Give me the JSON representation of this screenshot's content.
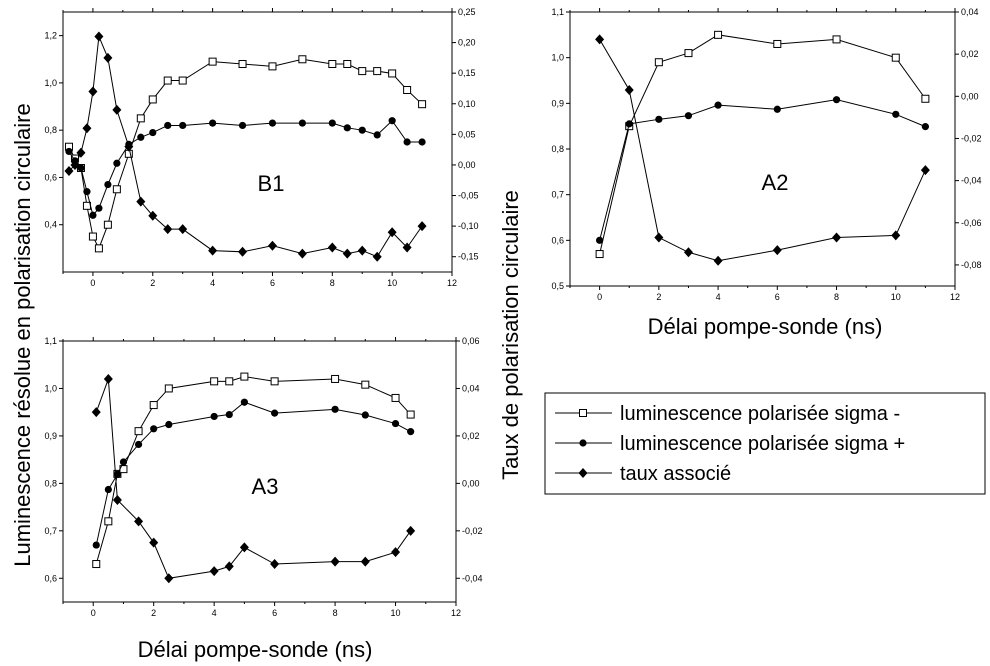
{
  "chart_data": [
    {
      "type": "line",
      "panel_label": "B1",
      "xlim": [
        -1,
        12
      ],
      "x_ticks": [
        "0",
        "2",
        "4",
        "6",
        "8",
        "10",
        "12"
      ],
      "ylim_left": [
        0.2,
        1.3
      ],
      "y_ticks_left": [
        "0,4",
        "0,6",
        "0,8",
        "1,0",
        "1,2"
      ],
      "ylim_right": [
        -0.175,
        0.25
      ],
      "y_ticks_right": [
        "-0,15",
        "-0,10",
        "-0,05",
        "0,00",
        "0,05",
        "0,10",
        "0,15",
        "0,20",
        "0,25"
      ],
      "series": [
        {
          "name": "luminescence polarisée sigma -",
          "axis": "left",
          "marker": "open-square",
          "x": [
            -0.8,
            -0.6,
            -0.4,
            -0.2,
            0,
            0.2,
            0.5,
            0.8,
            1.2,
            1.6,
            2,
            2.5,
            3,
            4,
            5,
            6,
            7,
            8,
            8.5,
            9,
            9.5,
            10,
            10.5,
            11
          ],
          "y": [
            0.73,
            0.68,
            0.64,
            0.48,
            0.35,
            0.3,
            0.4,
            0.55,
            0.7,
            0.85,
            0.93,
            1.01,
            1.01,
            1.09,
            1.08,
            1.07,
            1.1,
            1.08,
            1.08,
            1.05,
            1.05,
            1.04,
            0.97,
            0.91
          ]
        },
        {
          "name": "luminescence polarisée sigma +",
          "axis": "left",
          "marker": "filled-circle",
          "x": [
            -0.8,
            -0.6,
            -0.4,
            -0.2,
            0,
            0.2,
            0.5,
            0.8,
            1.2,
            1.6,
            2,
            2.5,
            3,
            4,
            5,
            6,
            7,
            8,
            8.5,
            9,
            9.5,
            10,
            10.5,
            11
          ],
          "y": [
            0.71,
            0.67,
            0.64,
            0.54,
            0.44,
            0.47,
            0.57,
            0.66,
            0.74,
            0.77,
            0.79,
            0.82,
            0.82,
            0.83,
            0.82,
            0.83,
            0.83,
            0.83,
            0.81,
            0.8,
            0.78,
            0.84,
            0.75,
            0.75
          ]
        },
        {
          "name": "taux associé",
          "axis": "right",
          "marker": "filled-diamond",
          "x": [
            -0.8,
            -0.6,
            -0.4,
            -0.2,
            0,
            0.2,
            0.5,
            0.8,
            1.2,
            1.6,
            2,
            2.5,
            3,
            4,
            5,
            6,
            7,
            8,
            8.5,
            9,
            9.5,
            10,
            10.5,
            11
          ],
          "y": [
            -0.01,
            0.0,
            0.02,
            0.06,
            0.12,
            0.21,
            0.175,
            0.09,
            0.03,
            -0.06,
            -0.083,
            -0.105,
            -0.105,
            -0.14,
            -0.142,
            -0.132,
            -0.145,
            -0.135,
            -0.145,
            -0.14,
            -0.15,
            -0.11,
            -0.135,
            -0.1
          ]
        }
      ]
    },
    {
      "type": "line",
      "panel_label": "A2",
      "xlim": [
        -1,
        12
      ],
      "x_ticks": [
        "0",
        "2",
        "4",
        "6",
        "8",
        "10",
        "12"
      ],
      "ylim_left": [
        0.5,
        1.1
      ],
      "y_ticks_left": [
        "0,5",
        "0,6",
        "0,7",
        "0,8",
        "0,9",
        "1,0",
        "1,1"
      ],
      "ylim_right": [
        -0.09,
        0.04
      ],
      "y_ticks_right": [
        "-0,08",
        "-0,06",
        "-0,04",
        "-0,02",
        "0,00",
        "0,02",
        "0,04"
      ],
      "series": [
        {
          "name": "luminescence polarisée sigma -",
          "axis": "left",
          "marker": "open-square",
          "x": [
            0,
            1,
            2,
            3,
            4,
            6,
            8,
            10,
            11
          ],
          "y": [
            0.57,
            0.85,
            0.99,
            1.01,
            1.05,
            1.03,
            1.04,
            1.0,
            0.91
          ]
        },
        {
          "name": "luminescence polarisée sigma +",
          "axis": "left",
          "marker": "filled-circle",
          "x": [
            0,
            1,
            2,
            3,
            4,
            6,
            8,
            10,
            11
          ],
          "y": [
            0.6,
            0.855,
            0.865,
            0.873,
            0.896,
            0.887,
            0.908,
            0.876,
            0.849
          ]
        },
        {
          "name": "taux associé",
          "axis": "right",
          "marker": "filled-diamond",
          "x": [
            0,
            1,
            2,
            3,
            4,
            6,
            8,
            10,
            11
          ],
          "y": [
            0.027,
            0.003,
            -0.067,
            -0.074,
            -0.078,
            -0.073,
            -0.067,
            -0.066,
            -0.035
          ]
        }
      ]
    },
    {
      "type": "line",
      "panel_label": "A3",
      "xlim": [
        -1,
        12
      ],
      "x_ticks": [
        "0",
        "2",
        "4",
        "6",
        "8",
        "10",
        "12"
      ],
      "ylim_left": [
        0.55,
        1.1
      ],
      "y_ticks_left": [
        "0,6",
        "0,7",
        "0,8",
        "0,9",
        "1,0",
        "1,1"
      ],
      "ylim_right": [
        -0.05,
        0.06
      ],
      "y_ticks_right": [
        "-0,04",
        "-0,02",
        "0,00",
        "0,02",
        "0,04",
        "0,06"
      ],
      "series": [
        {
          "name": "luminescence polarisée sigma -",
          "axis": "left",
          "marker": "open-square",
          "x": [
            0.1,
            0.5,
            0.8,
            1.0,
            1.5,
            2,
            2.5,
            4,
            4.5,
            5,
            6,
            8,
            9,
            10,
            10.5
          ],
          "y": [
            0.63,
            0.72,
            0.82,
            0.83,
            0.91,
            0.965,
            1.0,
            1.015,
            1.015,
            1.025,
            1.015,
            1.02,
            1.008,
            0.98,
            0.945
          ]
        },
        {
          "name": "luminescence polarisée sigma +",
          "axis": "left",
          "marker": "filled-circle",
          "x": [
            0.1,
            0.5,
            0.8,
            1.0,
            1.5,
            2,
            2.5,
            4,
            4.5,
            5,
            6,
            8,
            9,
            10,
            10.5
          ],
          "y": [
            0.67,
            0.787,
            0.819,
            0.845,
            0.882,
            0.915,
            0.924,
            0.941,
            0.945,
            0.971,
            0.948,
            0.956,
            0.944,
            0.926,
            0.909
          ]
        },
        {
          "name": "taux associé",
          "axis": "right",
          "marker": "filled-diamond",
          "x": [
            0.1,
            0.5,
            0.8,
            1.5,
            2,
            2.5,
            4,
            4.5,
            5,
            6,
            8,
            9,
            10,
            10.5
          ],
          "y": [
            0.03,
            0.044,
            -0.007,
            -0.016,
            -0.025,
            -0.04,
            -0.037,
            -0.035,
            -0.027,
            -0.034,
            -0.033,
            -0.033,
            -0.029,
            -0.02
          ]
        }
      ]
    }
  ],
  "axis_labels": {
    "y_left": "Luminescence résolue en polarisation circulaire",
    "y_right": "Taux de polarisation circulaire",
    "x_top_right": "Délai pompe-sonde (ns)",
    "x_bottom": "Délai pompe-sonde (ns)"
  },
  "legend": [
    {
      "marker": "open-square",
      "label": "luminescence polarisée sigma -"
    },
    {
      "marker": "filled-circle",
      "label": "luminescence polarisée sigma +"
    },
    {
      "marker": "filled-diamond",
      "label": "taux associé"
    }
  ]
}
